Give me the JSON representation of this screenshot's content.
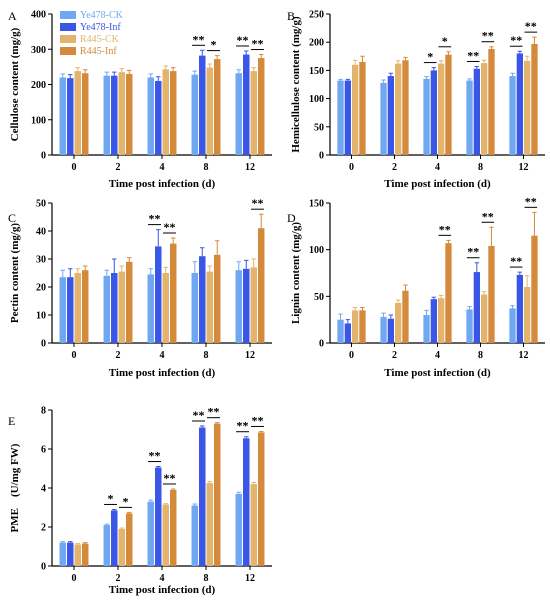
{
  "colors": {
    "Ye478-CK": "#6fa8f0",
    "Ye478-Inf": "#3a56e6",
    "R445-CK": "#e2b46e",
    "R445-Inf": "#d48a3a",
    "text": "#000000"
  },
  "chart_data": [
    {
      "id": "A",
      "panel_letter": "A",
      "type": "bar",
      "ylabel": "Cellulose content (mg/g)",
      "xlabel": "Time post infection (d)",
      "ylim": [
        0,
        400
      ],
      "yticks": [
        0,
        100,
        200,
        300,
        400
      ],
      "categories": [
        "0",
        "2",
        "4",
        "8",
        "12"
      ],
      "legend": {
        "placement": "top-left",
        "entries": [
          "Ye478-CK",
          "Ye478-Inf",
          "R445-CK",
          "R445-Inf"
        ]
      },
      "series": [
        {
          "name": "Ye478-CK",
          "values": [
            220,
            225,
            220,
            228,
            232
          ],
          "errors": [
            10,
            10,
            10,
            10,
            10
          ]
        },
        {
          "name": "Ye478-Inf",
          "values": [
            218,
            225,
            210,
            282,
            285
          ],
          "errors": [
            10,
            10,
            12,
            15,
            10
          ]
        },
        {
          "name": "R445-CK",
          "values": [
            238,
            235,
            243,
            248,
            238
          ],
          "errors": [
            10,
            10,
            10,
            10,
            10
          ]
        },
        {
          "name": "R445-Inf",
          "values": [
            232,
            230,
            238,
            272,
            275
          ],
          "errors": [
            10,
            10,
            10,
            10,
            10
          ]
        }
      ],
      "significance": [
        {
          "category_index": 3,
          "pair": "Ye478",
          "label": "**"
        },
        {
          "category_index": 3,
          "pair": "R445",
          "label": "*"
        },
        {
          "category_index": 4,
          "pair": "Ye478",
          "label": "**"
        },
        {
          "category_index": 4,
          "pair": "R445",
          "label": "**"
        }
      ]
    },
    {
      "id": "B",
      "panel_letter": "B",
      "type": "bar",
      "ylabel": "Hemicellulose content (mg/g)",
      "xlabel": "Time post infection (d)",
      "ylim": [
        0,
        250
      ],
      "yticks": [
        0,
        50,
        100,
        150,
        200,
        250
      ],
      "categories": [
        "0",
        "2",
        "4",
        "8",
        "12"
      ],
      "series": [
        {
          "name": "Ye478-CK",
          "values": [
            132,
            128,
            135,
            132,
            140
          ],
          "errors": [
            2,
            5,
            4,
            3,
            5
          ]
        },
        {
          "name": "Ye478-Inf",
          "values": [
            132,
            140,
            150,
            153,
            180
          ],
          "errors": [
            2,
            5,
            5,
            4,
            4
          ]
        },
        {
          "name": "R445-CK",
          "values": [
            160,
            162,
            162,
            163,
            167
          ],
          "errors": [
            8,
            5,
            5,
            5,
            8
          ]
        },
        {
          "name": "R445-Inf",
          "values": [
            165,
            168,
            178,
            188,
            197
          ],
          "errors": [
            10,
            5,
            5,
            4,
            12
          ]
        }
      ],
      "significance": [
        {
          "category_index": 2,
          "pair": "Ye478",
          "label": "*"
        },
        {
          "category_index": 2,
          "pair": "R445",
          "label": "*"
        },
        {
          "category_index": 3,
          "pair": "Ye478",
          "label": "**"
        },
        {
          "category_index": 3,
          "pair": "R445",
          "label": "**"
        },
        {
          "category_index": 4,
          "pair": "Ye478",
          "label": "**"
        },
        {
          "category_index": 4,
          "pair": "R445",
          "label": "**"
        }
      ]
    },
    {
      "id": "C",
      "panel_letter": "C",
      "type": "bar",
      "ylabel": "Pectin content (mg/g)",
      "xlabel": "Time post infection (d)",
      "ylim": [
        0,
        50
      ],
      "yticks": [
        0,
        10,
        20,
        30,
        40,
        50
      ],
      "categories": [
        "0",
        "2",
        "4",
        "8",
        "12"
      ],
      "series": [
        {
          "name": "Ye478-CK",
          "values": [
            23.5,
            24,
            24.5,
            25,
            26
          ],
          "errors": [
            2.5,
            2,
            2,
            4,
            3
          ]
        },
        {
          "name": "Ye478-Inf",
          "values": [
            23.5,
            25,
            34.5,
            31,
            26.5
          ],
          "errors": [
            3,
            5,
            6,
            3,
            3
          ]
        },
        {
          "name": "R445-CK",
          "values": [
            25,
            25.5,
            25,
            25.5,
            27
          ],
          "errors": [
            1.5,
            2,
            2,
            2,
            3
          ]
        },
        {
          "name": "R445-Inf",
          "values": [
            26,
            29,
            35.5,
            31.5,
            41
          ],
          "errors": [
            1.5,
            1.5,
            2,
            5,
            5
          ]
        }
      ],
      "significance": [
        {
          "category_index": 2,
          "pair": "Ye478",
          "label": "**"
        },
        {
          "category_index": 2,
          "pair": "R445",
          "label": "**"
        },
        {
          "category_index": 4,
          "pair": "R445",
          "label": "**"
        }
      ]
    },
    {
      "id": "D",
      "panel_letter": "D",
      "type": "bar",
      "ylabel": "Lignin content (mg/g)",
      "xlabel": "Time post infection (d)",
      "ylim": [
        0,
        150
      ],
      "yticks": [
        0,
        50,
        100,
        150
      ],
      "categories": [
        "0",
        "2",
        "4",
        "8",
        "12"
      ],
      "series": [
        {
          "name": "Ye478-CK",
          "values": [
            25,
            28,
            30,
            36,
            37
          ],
          "errors": [
            6,
            4,
            5,
            3,
            3
          ]
        },
        {
          "name": "Ye478-Inf",
          "values": [
            21,
            26,
            47,
            76,
            73
          ],
          "errors": [
            4,
            4,
            2,
            10,
            3
          ]
        },
        {
          "name": "R445-CK",
          "values": [
            35,
            43,
            48,
            52,
            60
          ],
          "errors": [
            3,
            3,
            3,
            3,
            12
          ]
        },
        {
          "name": "R445-Inf",
          "values": [
            35,
            56,
            107,
            104,
            115
          ],
          "errors": [
            3,
            6,
            3,
            20,
            25
          ]
        }
      ],
      "significance": [
        {
          "category_index": 2,
          "pair": "R445",
          "label": "**"
        },
        {
          "category_index": 3,
          "pair": "Ye478",
          "label": "**"
        },
        {
          "category_index": 3,
          "pair": "R445",
          "label": "**"
        },
        {
          "category_index": 4,
          "pair": "Ye478",
          "label": "**"
        },
        {
          "category_index": 4,
          "pair": "R445",
          "label": "**"
        }
      ]
    },
    {
      "id": "E",
      "panel_letter": "E",
      "type": "bar",
      "ylabel": "PME　(U/mg FW)",
      "xlabel": "Time post infection (d)",
      "ylim": [
        0,
        8
      ],
      "yticks": [
        0,
        2,
        4,
        6,
        8
      ],
      "categories": [
        "0",
        "2",
        "4",
        "8",
        "12"
      ],
      "series": [
        {
          "name": "Ye478-CK",
          "values": [
            1.2,
            2.1,
            3.3,
            3.1,
            3.7
          ],
          "errors": [
            0.05,
            0.05,
            0.08,
            0.08,
            0.08
          ]
        },
        {
          "name": "Ye478-Inf",
          "values": [
            1.2,
            2.85,
            5.05,
            7.1,
            6.55
          ],
          "errors": [
            0.05,
            0.05,
            0.05,
            0.08,
            0.08
          ]
        },
        {
          "name": "R445-CK",
          "values": [
            1.1,
            1.9,
            3.15,
            4.25,
            4.2
          ],
          "errors": [
            0.05,
            0.05,
            0.05,
            0.08,
            0.08
          ]
        },
        {
          "name": "R445-Inf",
          "values": [
            1.15,
            2.7,
            3.9,
            7.3,
            6.85
          ],
          "errors": [
            0.05,
            0.05,
            0.05,
            0.05,
            0.05
          ]
        }
      ],
      "significance": [
        {
          "category_index": 1,
          "pair": "Ye478",
          "label": "*"
        },
        {
          "category_index": 1,
          "pair": "R445",
          "label": "*"
        },
        {
          "category_index": 2,
          "pair": "Ye478",
          "label": "**"
        },
        {
          "category_index": 2,
          "pair": "R445",
          "label": "**"
        },
        {
          "category_index": 3,
          "pair": "Ye478",
          "label": "**"
        },
        {
          "category_index": 3,
          "pair": "R445",
          "label": "**"
        },
        {
          "category_index": 4,
          "pair": "Ye478",
          "label": "**"
        },
        {
          "category_index": 4,
          "pair": "R445",
          "label": "**"
        }
      ]
    }
  ]
}
